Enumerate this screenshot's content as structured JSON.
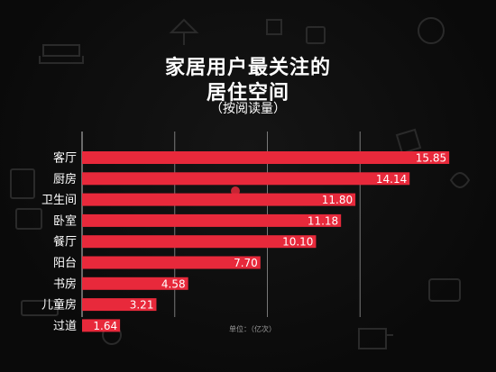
{
  "title_line1": "家居用户最关注的",
  "title_line2": "居住空间",
  "subtitle": "（按阅读量）",
  "unit_label": "单位：（亿次）",
  "colors": {
    "bar": "#e8293b",
    "background": "#0b0b0b",
    "text": "#ffffff",
    "gridline": "#cfcfcf"
  },
  "chart_data": {
    "type": "bar",
    "orientation": "horizontal",
    "title": "家居用户最关注的居住空间",
    "subtitle": "（按阅读量）",
    "unit": "单位：（亿次）",
    "categories": [
      "客厅",
      "厨房",
      "卫生间",
      "卧室",
      "餐厅",
      "阳台",
      "书房",
      "儿童房",
      "过道"
    ],
    "values": [
      15.85,
      14.14,
      11.8,
      11.18,
      10.1,
      7.7,
      4.58,
      3.21,
      1.64
    ],
    "value_labels": [
      "15.85",
      "14.14",
      "11.80",
      "11.18",
      "10.10",
      "7.70",
      "4.58",
      "3.21",
      "1.64"
    ],
    "xlim": [
      0,
      16
    ],
    "gridlines_at": [
      0,
      4,
      8,
      12
    ],
    "grid": true,
    "legend": "none"
  }
}
